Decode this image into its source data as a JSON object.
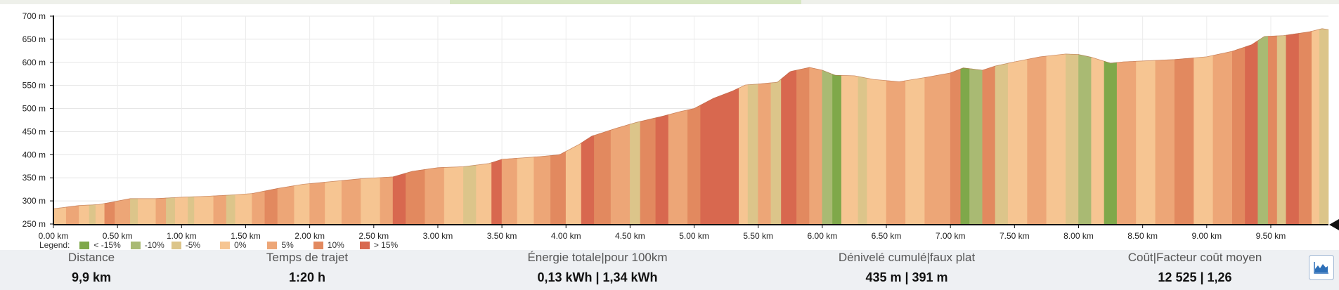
{
  "chart_data": {
    "type": "area",
    "title": "",
    "xlabel": "",
    "ylabel": "",
    "x_unit": "km",
    "y_unit": "m",
    "xlim": [
      0,
      9.95
    ],
    "ylim": [
      250,
      700
    ],
    "x_ticks": [
      0,
      0.5,
      1,
      1.5,
      2,
      2.5,
      3,
      3.5,
      4,
      4.5,
      5,
      5.5,
      6,
      6.5,
      7,
      7.5,
      8,
      8.5,
      9,
      9.5
    ],
    "x_tick_labels": [
      "0.00 km",
      "0.50 km",
      "1.00 km",
      "1.50 km",
      "2.00 km",
      "2.50 km",
      "3.00 km",
      "3.50 km",
      "4.00 km",
      "4.50 km",
      "5.00 km",
      "5.50 km",
      "6.00 km",
      "6.50 km",
      "7.00 km",
      "7.50 km",
      "8.00 km",
      "8.50 km",
      "9.00 km",
      "9.50 km"
    ],
    "y_ticks": [
      250,
      300,
      350,
      400,
      450,
      500,
      550,
      600,
      650,
      700
    ],
    "y_tick_labels": [
      "250 m",
      "300 m",
      "350 m",
      "400 m",
      "450 m",
      "500 m",
      "550 m",
      "600 m",
      "650 m",
      "700 m"
    ],
    "grid": true,
    "legend_position": "bottom-left",
    "legend": {
      "title": "Legend:",
      "items": [
        {
          "label": "< -15%",
          "color": "#7fa84a"
        },
        {
          "label": "-10%",
          "color": "#a9ba73"
        },
        {
          "label": "-5%",
          "color": "#dcc58a"
        },
        {
          "label": "0%",
          "color": "#f6c592"
        },
        {
          "label": "5%",
          "color": "#eda677"
        },
        {
          "label": "10%",
          "color": "#e2895f"
        },
        {
          "label": "> 15%",
          "color": "#d8684f"
        }
      ]
    },
    "profile": [
      {
        "x": 0.0,
        "y": 283
      },
      {
        "x": 0.2,
        "y": 290
      },
      {
        "x": 0.35,
        "y": 292
      },
      {
        "x": 0.45,
        "y": 297
      },
      {
        "x": 0.6,
        "y": 305
      },
      {
        "x": 0.8,
        "y": 305
      },
      {
        "x": 1.0,
        "y": 308
      },
      {
        "x": 1.2,
        "y": 310
      },
      {
        "x": 1.4,
        "y": 313
      },
      {
        "x": 1.55,
        "y": 316
      },
      {
        "x": 1.75,
        "y": 327
      },
      {
        "x": 1.95,
        "y": 336
      },
      {
        "x": 2.25,
        "y": 344
      },
      {
        "x": 2.4,
        "y": 348
      },
      {
        "x": 2.65,
        "y": 352
      },
      {
        "x": 2.8,
        "y": 364
      },
      {
        "x": 3.0,
        "y": 372
      },
      {
        "x": 3.2,
        "y": 374
      },
      {
        "x": 3.4,
        "y": 381
      },
      {
        "x": 3.5,
        "y": 390
      },
      {
        "x": 3.8,
        "y": 396
      },
      {
        "x": 3.95,
        "y": 400
      },
      {
        "x": 4.1,
        "y": 422
      },
      {
        "x": 4.2,
        "y": 440
      },
      {
        "x": 4.4,
        "y": 458
      },
      {
        "x": 4.55,
        "y": 470
      },
      {
        "x": 4.75,
        "y": 483
      },
      {
        "x": 4.9,
        "y": 494
      },
      {
        "x": 5.0,
        "y": 500
      },
      {
        "x": 5.15,
        "y": 522
      },
      {
        "x": 5.3,
        "y": 538
      },
      {
        "x": 5.4,
        "y": 551
      },
      {
        "x": 5.5,
        "y": 553
      },
      {
        "x": 5.65,
        "y": 557
      },
      {
        "x": 5.75,
        "y": 580
      },
      {
        "x": 5.9,
        "y": 589
      },
      {
        "x": 6.0,
        "y": 583
      },
      {
        "x": 6.1,
        "y": 572
      },
      {
        "x": 6.25,
        "y": 571
      },
      {
        "x": 6.4,
        "y": 563
      },
      {
        "x": 6.6,
        "y": 558
      },
      {
        "x": 6.8,
        "y": 567
      },
      {
        "x": 7.0,
        "y": 577
      },
      {
        "x": 7.1,
        "y": 588
      },
      {
        "x": 7.25,
        "y": 583
      },
      {
        "x": 7.35,
        "y": 592
      },
      {
        "x": 7.5,
        "y": 601
      },
      {
        "x": 7.7,
        "y": 612
      },
      {
        "x": 7.9,
        "y": 618
      },
      {
        "x": 8.0,
        "y": 617
      },
      {
        "x": 8.1,
        "y": 611
      },
      {
        "x": 8.25,
        "y": 598
      },
      {
        "x": 8.35,
        "y": 601
      },
      {
        "x": 8.5,
        "y": 603
      },
      {
        "x": 8.75,
        "y": 606
      },
      {
        "x": 9.0,
        "y": 612
      },
      {
        "x": 9.2,
        "y": 624
      },
      {
        "x": 9.35,
        "y": 638
      },
      {
        "x": 9.45,
        "y": 656
      },
      {
        "x": 9.6,
        "y": 658
      },
      {
        "x": 9.8,
        "y": 666
      },
      {
        "x": 9.9,
        "y": 673
      },
      {
        "x": 9.95,
        "y": 671
      }
    ],
    "segments": [
      {
        "x0": 0.0,
        "x1": 0.1,
        "grade": "0%"
      },
      {
        "x0": 0.1,
        "x1": 0.2,
        "grade": "5%"
      },
      {
        "x0": 0.2,
        "x1": 0.28,
        "grade": "0%"
      },
      {
        "x0": 0.28,
        "x1": 0.33,
        "grade": "-5%"
      },
      {
        "x0": 0.33,
        "x1": 0.4,
        "grade": "0%"
      },
      {
        "x0": 0.4,
        "x1": 0.48,
        "grade": "10%"
      },
      {
        "x0": 0.48,
        "x1": 0.6,
        "grade": "5%"
      },
      {
        "x0": 0.6,
        "x1": 0.66,
        "grade": "-5%"
      },
      {
        "x0": 0.66,
        "x1": 0.8,
        "grade": "0%"
      },
      {
        "x0": 0.8,
        "x1": 0.88,
        "grade": "5%"
      },
      {
        "x0": 0.88,
        "x1": 0.95,
        "grade": "-5%"
      },
      {
        "x0": 0.95,
        "x1": 1.05,
        "grade": "0%"
      },
      {
        "x0": 1.05,
        "x1": 1.1,
        "grade": "-5%"
      },
      {
        "x0": 1.1,
        "x1": 1.25,
        "grade": "0%"
      },
      {
        "x0": 1.25,
        "x1": 1.35,
        "grade": "5%"
      },
      {
        "x0": 1.35,
        "x1": 1.42,
        "grade": "-5%"
      },
      {
        "x0": 1.42,
        "x1": 1.55,
        "grade": "0%"
      },
      {
        "x0": 1.55,
        "x1": 1.65,
        "grade": "5%"
      },
      {
        "x0": 1.65,
        "x1": 1.75,
        "grade": "10%"
      },
      {
        "x0": 1.75,
        "x1": 1.88,
        "grade": "5%"
      },
      {
        "x0": 1.88,
        "x1": 2.0,
        "grade": "0%"
      },
      {
        "x0": 2.0,
        "x1": 2.12,
        "grade": "5%"
      },
      {
        "x0": 2.12,
        "x1": 2.25,
        "grade": "0%"
      },
      {
        "x0": 2.25,
        "x1": 2.4,
        "grade": "5%"
      },
      {
        "x0": 2.4,
        "x1": 2.55,
        "grade": "0%"
      },
      {
        "x0": 2.55,
        "x1": 2.65,
        "grade": "5%"
      },
      {
        "x0": 2.65,
        "x1": 2.75,
        "grade": "> 15%"
      },
      {
        "x0": 2.75,
        "x1": 2.9,
        "grade": "10%"
      },
      {
        "x0": 2.9,
        "x1": 3.05,
        "grade": "5%"
      },
      {
        "x0": 3.05,
        "x1": 3.2,
        "grade": "0%"
      },
      {
        "x0": 3.2,
        "x1": 3.3,
        "grade": "-5%"
      },
      {
        "x0": 3.3,
        "x1": 3.42,
        "grade": "0%"
      },
      {
        "x0": 3.42,
        "x1": 3.5,
        "grade": "> 15%"
      },
      {
        "x0": 3.5,
        "x1": 3.62,
        "grade": "5%"
      },
      {
        "x0": 3.62,
        "x1": 3.75,
        "grade": "0%"
      },
      {
        "x0": 3.75,
        "x1": 3.88,
        "grade": "5%"
      },
      {
        "x0": 3.88,
        "x1": 4.0,
        "grade": "10%"
      },
      {
        "x0": 4.0,
        "x1": 4.12,
        "grade": "0%"
      },
      {
        "x0": 4.12,
        "x1": 4.22,
        "grade": "> 15%"
      },
      {
        "x0": 4.22,
        "x1": 4.35,
        "grade": "10%"
      },
      {
        "x0": 4.35,
        "x1": 4.5,
        "grade": "5%"
      },
      {
        "x0": 4.5,
        "x1": 4.58,
        "grade": "-5%"
      },
      {
        "x0": 4.58,
        "x1": 4.7,
        "grade": "10%"
      },
      {
        "x0": 4.7,
        "x1": 4.8,
        "grade": "> 15%"
      },
      {
        "x0": 4.8,
        "x1": 4.95,
        "grade": "5%"
      },
      {
        "x0": 4.95,
        "x1": 5.05,
        "grade": "10%"
      },
      {
        "x0": 5.05,
        "x1": 5.35,
        "grade": "> 15%"
      },
      {
        "x0": 5.35,
        "x1": 5.42,
        "grade": "0%"
      },
      {
        "x0": 5.42,
        "x1": 5.5,
        "grade": "-5%"
      },
      {
        "x0": 5.5,
        "x1": 5.6,
        "grade": "5%"
      },
      {
        "x0": 5.6,
        "x1": 5.68,
        "grade": "-5%"
      },
      {
        "x0": 5.68,
        "x1": 5.8,
        "grade": "> 15%"
      },
      {
        "x0": 5.8,
        "x1": 5.9,
        "grade": "10%"
      },
      {
        "x0": 5.9,
        "x1": 6.0,
        "grade": "5%"
      },
      {
        "x0": 6.0,
        "x1": 6.08,
        "grade": "-10%"
      },
      {
        "x0": 6.08,
        "x1": 6.15,
        "grade": "< -15%"
      },
      {
        "x0": 6.15,
        "x1": 6.28,
        "grade": "0%"
      },
      {
        "x0": 6.28,
        "x1": 6.35,
        "grade": "-5%"
      },
      {
        "x0": 6.35,
        "x1": 6.5,
        "grade": "0%"
      },
      {
        "x0": 6.5,
        "x1": 6.65,
        "grade": "5%"
      },
      {
        "x0": 6.65,
        "x1": 6.8,
        "grade": "0%"
      },
      {
        "x0": 6.8,
        "x1": 7.0,
        "grade": "5%"
      },
      {
        "x0": 7.0,
        "x1": 7.08,
        "grade": "10%"
      },
      {
        "x0": 7.08,
        "x1": 7.15,
        "grade": "< -15%"
      },
      {
        "x0": 7.15,
        "x1": 7.25,
        "grade": "-10%"
      },
      {
        "x0": 7.25,
        "x1": 7.35,
        "grade": "10%"
      },
      {
        "x0": 7.35,
        "x1": 7.45,
        "grade": "-5%"
      },
      {
        "x0": 7.45,
        "x1": 7.6,
        "grade": "0%"
      },
      {
        "x0": 7.6,
        "x1": 7.75,
        "grade": "5%"
      },
      {
        "x0": 7.75,
        "x1": 7.9,
        "grade": "0%"
      },
      {
        "x0": 7.9,
        "x1": 8.0,
        "grade": "-5%"
      },
      {
        "x0": 8.0,
        "x1": 8.1,
        "grade": "-10%"
      },
      {
        "x0": 8.1,
        "x1": 8.2,
        "grade": "0%"
      },
      {
        "x0": 8.2,
        "x1": 8.3,
        "grade": "< -15%"
      },
      {
        "x0": 8.3,
        "x1": 8.45,
        "grade": "5%"
      },
      {
        "x0": 8.45,
        "x1": 8.6,
        "grade": "0%"
      },
      {
        "x0": 8.6,
        "x1": 8.75,
        "grade": "5%"
      },
      {
        "x0": 8.75,
        "x1": 8.9,
        "grade": "10%"
      },
      {
        "x0": 8.9,
        "x1": 9.05,
        "grade": "0%"
      },
      {
        "x0": 9.05,
        "x1": 9.2,
        "grade": "5%"
      },
      {
        "x0": 9.2,
        "x1": 9.3,
        "grade": "10%"
      },
      {
        "x0": 9.3,
        "x1": 9.4,
        "grade": "> 15%"
      },
      {
        "x0": 9.4,
        "x1": 9.48,
        "grade": "-10%"
      },
      {
        "x0": 9.48,
        "x1": 9.55,
        "grade": "10%"
      },
      {
        "x0": 9.55,
        "x1": 9.62,
        "grade": "-5%"
      },
      {
        "x0": 9.62,
        "x1": 9.72,
        "grade": "> 15%"
      },
      {
        "x0": 9.72,
        "x1": 9.82,
        "grade": "10%"
      },
      {
        "x0": 9.82,
        "x1": 9.88,
        "grade": "0%"
      },
      {
        "x0": 9.88,
        "x1": 9.95,
        "grade": "-5%"
      }
    ]
  },
  "stats": [
    {
      "label": "Distance",
      "value": "9,9 km"
    },
    {
      "label": "Temps de trajet",
      "value": "1:20 h"
    },
    {
      "label": "Énergie totale|pour 100km",
      "value": "0,13 kWh | 1,34 kWh"
    },
    {
      "label": "Dénivelé cumulé|faux plat",
      "value": "435 m | 391 m"
    },
    {
      "label": "Coût|Facteur coût moyen",
      "value": "12 525 | 1,26"
    }
  ],
  "profile_button": {
    "icon": "elevation-chart-icon",
    "color": "#2d6fb8"
  }
}
